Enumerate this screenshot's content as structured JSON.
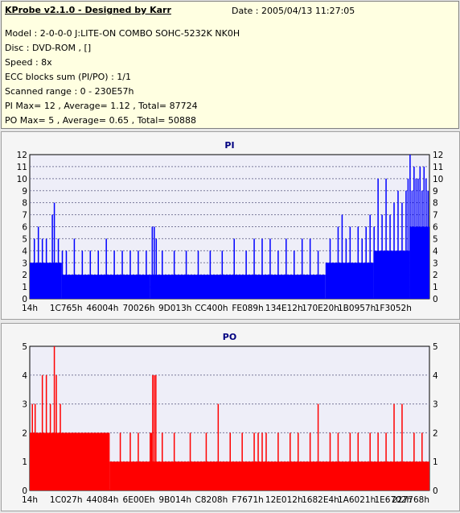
{
  "info": {
    "app_title": "KProbe v2.1.0 - Designed by Karr",
    "date": "Date : 2005/04/13 11:27:05",
    "lines": [
      "Model : 2-0-0-0 J:LITE-ON COMBO SOHC-5232K NK0H",
      "Disc : DVD-ROM ,  []",
      "Speed : 8x",
      "ECC blocks sum (PI/PO) : 1/1",
      "Scanned range : 0 - 230E57h",
      "PI Max= 12 , Average= 1.12 , Total= 87724",
      "PO Max= 5 , Average= 0.65 , Total= 50888"
    ]
  },
  "colors": {
    "pi": "#0000ff",
    "po": "#ff0000",
    "plot_bg": "#eeeef8",
    "title": "#000080"
  },
  "chart_data": [
    {
      "type": "bar",
      "title": "PI",
      "ylim": [
        0,
        12
      ],
      "yticks": [
        0,
        1,
        2,
        3,
        4,
        5,
        6,
        7,
        8,
        9,
        10,
        11,
        12
      ],
      "xticks": [
        "14h",
        "1C765h",
        "46004h",
        "70026h",
        "9D013h",
        "CC400h",
        "FE089h",
        "134E12h",
        "170E20h",
        "1B0957h",
        "1F3052h"
      ],
      "grid": true,
      "baseline_segments": [
        {
          "from": 0,
          "to": 0.08,
          "level": 3
        },
        {
          "from": 0.08,
          "to": 0.3,
          "level": 2
        },
        {
          "from": 0.3,
          "to": 0.74,
          "level": 2
        },
        {
          "from": 0.74,
          "to": 0.86,
          "level": 3
        },
        {
          "from": 0.86,
          "to": 0.95,
          "level": 4
        },
        {
          "from": 0.95,
          "to": 1.0,
          "level": 6
        }
      ],
      "spikes": [
        {
          "x": 0.01,
          "v": 5
        },
        {
          "x": 0.02,
          "v": 6
        },
        {
          "x": 0.03,
          "v": 5
        },
        {
          "x": 0.04,
          "v": 5
        },
        {
          "x": 0.055,
          "v": 7
        },
        {
          "x": 0.06,
          "v": 8
        },
        {
          "x": 0.07,
          "v": 5
        },
        {
          "x": 0.08,
          "v": 4
        },
        {
          "x": 0.09,
          "v": 4
        },
        {
          "x": 0.11,
          "v": 5
        },
        {
          "x": 0.13,
          "v": 4
        },
        {
          "x": 0.15,
          "v": 4
        },
        {
          "x": 0.17,
          "v": 4
        },
        {
          "x": 0.19,
          "v": 5
        },
        {
          "x": 0.21,
          "v": 4
        },
        {
          "x": 0.23,
          "v": 4
        },
        {
          "x": 0.25,
          "v": 4
        },
        {
          "x": 0.27,
          "v": 4
        },
        {
          "x": 0.29,
          "v": 4
        },
        {
          "x": 0.305,
          "v": 6
        },
        {
          "x": 0.31,
          "v": 6
        },
        {
          "x": 0.315,
          "v": 5
        },
        {
          "x": 0.33,
          "v": 4
        },
        {
          "x": 0.36,
          "v": 4
        },
        {
          "x": 0.39,
          "v": 4
        },
        {
          "x": 0.42,
          "v": 4
        },
        {
          "x": 0.45,
          "v": 4
        },
        {
          "x": 0.48,
          "v": 4
        },
        {
          "x": 0.51,
          "v": 5
        },
        {
          "x": 0.54,
          "v": 4
        },
        {
          "x": 0.56,
          "v": 5
        },
        {
          "x": 0.58,
          "v": 5
        },
        {
          "x": 0.6,
          "v": 5
        },
        {
          "x": 0.62,
          "v": 4
        },
        {
          "x": 0.64,
          "v": 5
        },
        {
          "x": 0.66,
          "v": 4
        },
        {
          "x": 0.68,
          "v": 5
        },
        {
          "x": 0.7,
          "v": 5
        },
        {
          "x": 0.72,
          "v": 4
        },
        {
          "x": 0.75,
          "v": 5
        },
        {
          "x": 0.77,
          "v": 6
        },
        {
          "x": 0.78,
          "v": 7
        },
        {
          "x": 0.79,
          "v": 5
        },
        {
          "x": 0.8,
          "v": 6
        },
        {
          "x": 0.82,
          "v": 6
        },
        {
          "x": 0.83,
          "v": 5
        },
        {
          "x": 0.84,
          "v": 6
        },
        {
          "x": 0.85,
          "v": 7
        },
        {
          "x": 0.86,
          "v": 6
        },
        {
          "x": 0.87,
          "v": 10
        },
        {
          "x": 0.88,
          "v": 7
        },
        {
          "x": 0.89,
          "v": 10
        },
        {
          "x": 0.9,
          "v": 7
        },
        {
          "x": 0.91,
          "v": 8
        },
        {
          "x": 0.92,
          "v": 9
        },
        {
          "x": 0.93,
          "v": 8
        },
        {
          "x": 0.94,
          "v": 9
        },
        {
          "x": 0.945,
          "v": 10
        },
        {
          "x": 0.95,
          "v": 12
        },
        {
          "x": 0.955,
          "v": 9
        },
        {
          "x": 0.96,
          "v": 11
        },
        {
          "x": 0.965,
          "v": 10
        },
        {
          "x": 0.97,
          "v": 10
        },
        {
          "x": 0.975,
          "v": 11
        },
        {
          "x": 0.98,
          "v": 9
        },
        {
          "x": 0.985,
          "v": 11
        },
        {
          "x": 0.99,
          "v": 10
        },
        {
          "x": 0.995,
          "v": 9
        }
      ]
    },
    {
      "type": "bar",
      "title": "PO",
      "ylim": [
        0,
        5
      ],
      "yticks": [
        0,
        1,
        2,
        3,
        4,
        5
      ],
      "xticks": [
        "14h",
        "1C027h",
        "44084h",
        "6E00Eh",
        "9B014h",
        "C8208h",
        "F7671h",
        "12E012h",
        "1682E4h",
        "1A6021h",
        "1E6702h",
        "227768h"
      ],
      "grid": true,
      "baseline_segments": [
        {
          "from": 0,
          "to": 0.2,
          "level": 2
        },
        {
          "from": 0.2,
          "to": 1.0,
          "level": 1
        }
      ],
      "spikes": [
        {
          "x": 0.005,
          "v": 3
        },
        {
          "x": 0.012,
          "v": 3
        },
        {
          "x": 0.03,
          "v": 4
        },
        {
          "x": 0.04,
          "v": 4
        },
        {
          "x": 0.05,
          "v": 3
        },
        {
          "x": 0.06,
          "v": 5
        },
        {
          "x": 0.065,
          "v": 4
        },
        {
          "x": 0.075,
          "v": 3
        },
        {
          "x": 0.09,
          "v": 2
        },
        {
          "x": 0.11,
          "v": 2
        },
        {
          "x": 0.14,
          "v": 2
        },
        {
          "x": 0.17,
          "v": 2
        },
        {
          "x": 0.225,
          "v": 2
        },
        {
          "x": 0.25,
          "v": 2
        },
        {
          "x": 0.27,
          "v": 2
        },
        {
          "x": 0.3,
          "v": 2
        },
        {
          "x": 0.303,
          "v": 2
        },
        {
          "x": 0.306,
          "v": 4
        },
        {
          "x": 0.31,
          "v": 4
        },
        {
          "x": 0.314,
          "v": 4
        },
        {
          "x": 0.33,
          "v": 2
        },
        {
          "x": 0.36,
          "v": 2
        },
        {
          "x": 0.4,
          "v": 2
        },
        {
          "x": 0.44,
          "v": 2
        },
        {
          "x": 0.47,
          "v": 3
        },
        {
          "x": 0.5,
          "v": 2
        },
        {
          "x": 0.53,
          "v": 2
        },
        {
          "x": 0.56,
          "v": 2
        },
        {
          "x": 0.57,
          "v": 2
        },
        {
          "x": 0.58,
          "v": 2
        },
        {
          "x": 0.59,
          "v": 2
        },
        {
          "x": 0.62,
          "v": 2
        },
        {
          "x": 0.65,
          "v": 2
        },
        {
          "x": 0.67,
          "v": 2
        },
        {
          "x": 0.7,
          "v": 2
        },
        {
          "x": 0.72,
          "v": 3
        },
        {
          "x": 0.75,
          "v": 2
        },
        {
          "x": 0.77,
          "v": 2
        },
        {
          "x": 0.8,
          "v": 2
        },
        {
          "x": 0.82,
          "v": 2
        },
        {
          "x": 0.85,
          "v": 2
        },
        {
          "x": 0.87,
          "v": 2
        },
        {
          "x": 0.89,
          "v": 2
        },
        {
          "x": 0.91,
          "v": 3
        },
        {
          "x": 0.93,
          "v": 3
        },
        {
          "x": 0.96,
          "v": 2
        },
        {
          "x": 0.98,
          "v": 2
        }
      ]
    }
  ]
}
